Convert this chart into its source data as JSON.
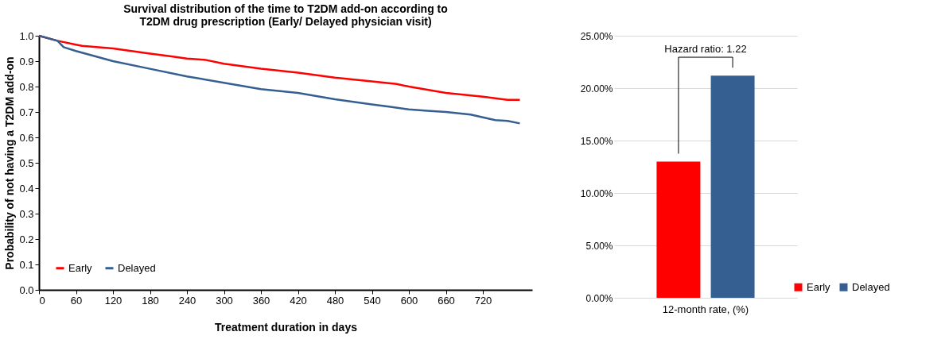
{
  "chart_data": [
    {
      "type": "line",
      "title": "Survival distribution of the time to T2DM add-on according to\nT2DM drug prescription (Early/ Delayed physician visit)",
      "xlabel": "Treatment duration in days",
      "ylabel": "Probability of not having a T2DM add-on",
      "xlim": [
        0,
        800
      ],
      "xticks": [
        0,
        60,
        120,
        180,
        240,
        300,
        360,
        420,
        480,
        540,
        600,
        660,
        720
      ],
      "ylim": [
        0,
        1
      ],
      "yticks": [
        {
          "value": 0,
          "label": "0.0"
        },
        0.1,
        0.2,
        0.3,
        0.4,
        0.5,
        0.6,
        0.7,
        0.8,
        0.9,
        {
          "value": 1,
          "label": "1.0"
        }
      ],
      "grid": false,
      "legend": "bottom left",
      "marker": "none",
      "line_style": "solid",
      "series": [
        {
          "name": "Early",
          "color": "#ff0000",
          "x": [
            0,
            30,
            60,
            70,
            120,
            180,
            210,
            240,
            270,
            300,
            360,
            420,
            480,
            540,
            580,
            600,
            660,
            720,
            760,
            780
          ],
          "values": [
            1.0,
            0.98,
            0.965,
            0.96,
            0.95,
            0.93,
            0.92,
            0.91,
            0.905,
            0.89,
            0.87,
            0.855,
            0.835,
            0.82,
            0.81,
            0.8,
            0.775,
            0.76,
            0.748,
            0.748
          ]
        },
        {
          "name": "Delayed",
          "color": "#365f91",
          "x": [
            0,
            30,
            40,
            60,
            120,
            180,
            240,
            300,
            360,
            420,
            480,
            540,
            570,
            600,
            630,
            660,
            700,
            740,
            760,
            780
          ],
          "values": [
            1.0,
            0.98,
            0.955,
            0.94,
            0.9,
            0.87,
            0.84,
            0.815,
            0.79,
            0.775,
            0.75,
            0.73,
            0.72,
            0.71,
            0.705,
            0.7,
            0.69,
            0.668,
            0.665,
            0.655
          ]
        }
      ]
    },
    {
      "type": "bar",
      "categories": [
        "12-month rate, (%)"
      ],
      "ylim": [
        0,
        25
      ],
      "yticks": [
        {
          "value": 0,
          "label": "0.00%"
        },
        {
          "value": 5,
          "label": "5.00%"
        },
        {
          "value": 10,
          "label": "10.00%"
        },
        {
          "value": 15,
          "label": "15.00%"
        },
        {
          "value": 20,
          "label": "20.00%"
        },
        {
          "value": 25,
          "label": "25.00%"
        }
      ],
      "grid": "y",
      "legend": "bottom right",
      "annotations": [
        "Hazard ratio: 1.22"
      ],
      "series": [
        {
          "name": "Early",
          "color": "#ff0000",
          "values": [
            13.0
          ]
        },
        {
          "name": "Delayed",
          "color": "#365f91",
          "values": [
            21.2
          ]
        }
      ]
    }
  ]
}
